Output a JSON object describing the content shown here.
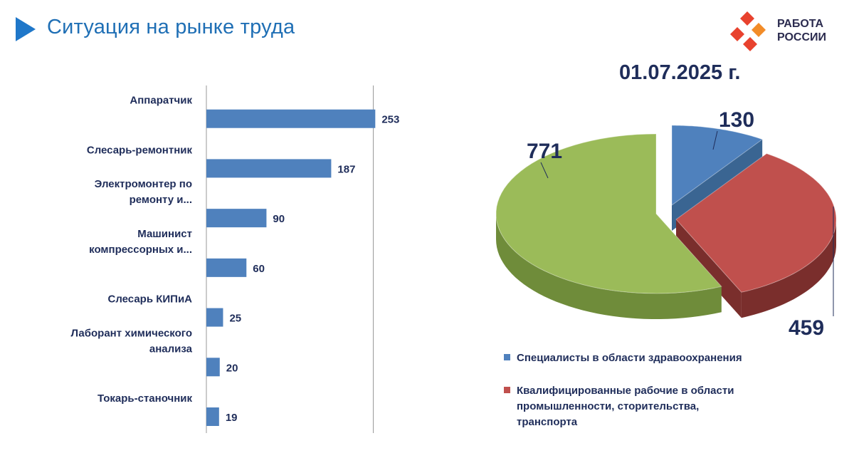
{
  "header": {
    "title": "Ситуация на рынке труда",
    "logo": {
      "line1": "РАБОТА",
      "line2": "РОССИИ",
      "colors": [
        "#e8422e",
        "#f28c28"
      ]
    }
  },
  "colors": {
    "bar": "#4f81bd",
    "slice_blue": "#4f81bd",
    "slice_red": "#c0504d",
    "slice_green": "#9bbb59",
    "text": "#1f2d5a",
    "title": "#1f6fb5",
    "accent": "#1f77c9"
  },
  "chart_data": [
    {
      "type": "bar",
      "orientation": "horizontal",
      "categories": [
        "Аппаратчик",
        "Слесарь-ремонтник",
        "Электромонтер по ремонту и...",
        "Машинист компрессорных и...",
        "Слесарь КИПиА",
        "Лаборант химического анализа",
        "Токарь-станочник"
      ],
      "category_lines": [
        [
          "Аппаратчик"
        ],
        [
          "Слесарь-ремонтник"
        ],
        [
          "Электромонтер по",
          "ремонту и..."
        ],
        [
          "Машинист",
          "компрессорных и..."
        ],
        [
          "Слесарь КИПиА"
        ],
        [
          "Лаборант химического",
          "анализа"
        ],
        [
          "Токарь-станочник"
        ]
      ],
      "values": [
        253,
        187,
        90,
        60,
        25,
        20,
        19
      ],
      "xlim": [
        0,
        500
      ],
      "gridlines": [
        250
      ],
      "data_labels": true
    },
    {
      "type": "pie",
      "style": "3d-exploded",
      "title": "01.07.2025 г.",
      "slices": [
        {
          "label": "Специалисты в области здравоохранения",
          "value": 130,
          "color": "#4f81bd"
        },
        {
          "label": "Квалифицированные рабочие в области промышленности,  сторительства, транспорта",
          "value": 459,
          "color": "#c0504d"
        },
        {
          "label": "",
          "value": 771,
          "color": "#9bbb59"
        }
      ],
      "legend_position": "bottom"
    }
  ],
  "legend": [
    {
      "lines": [
        "Специалисты в области здравоохранения"
      ],
      "color": "#4f81bd"
    },
    {
      "lines": [
        "Квалифицированные рабочие в области",
        "промышленности,  сторительства,",
        "транспорта"
      ],
      "color": "#c0504d"
    }
  ]
}
